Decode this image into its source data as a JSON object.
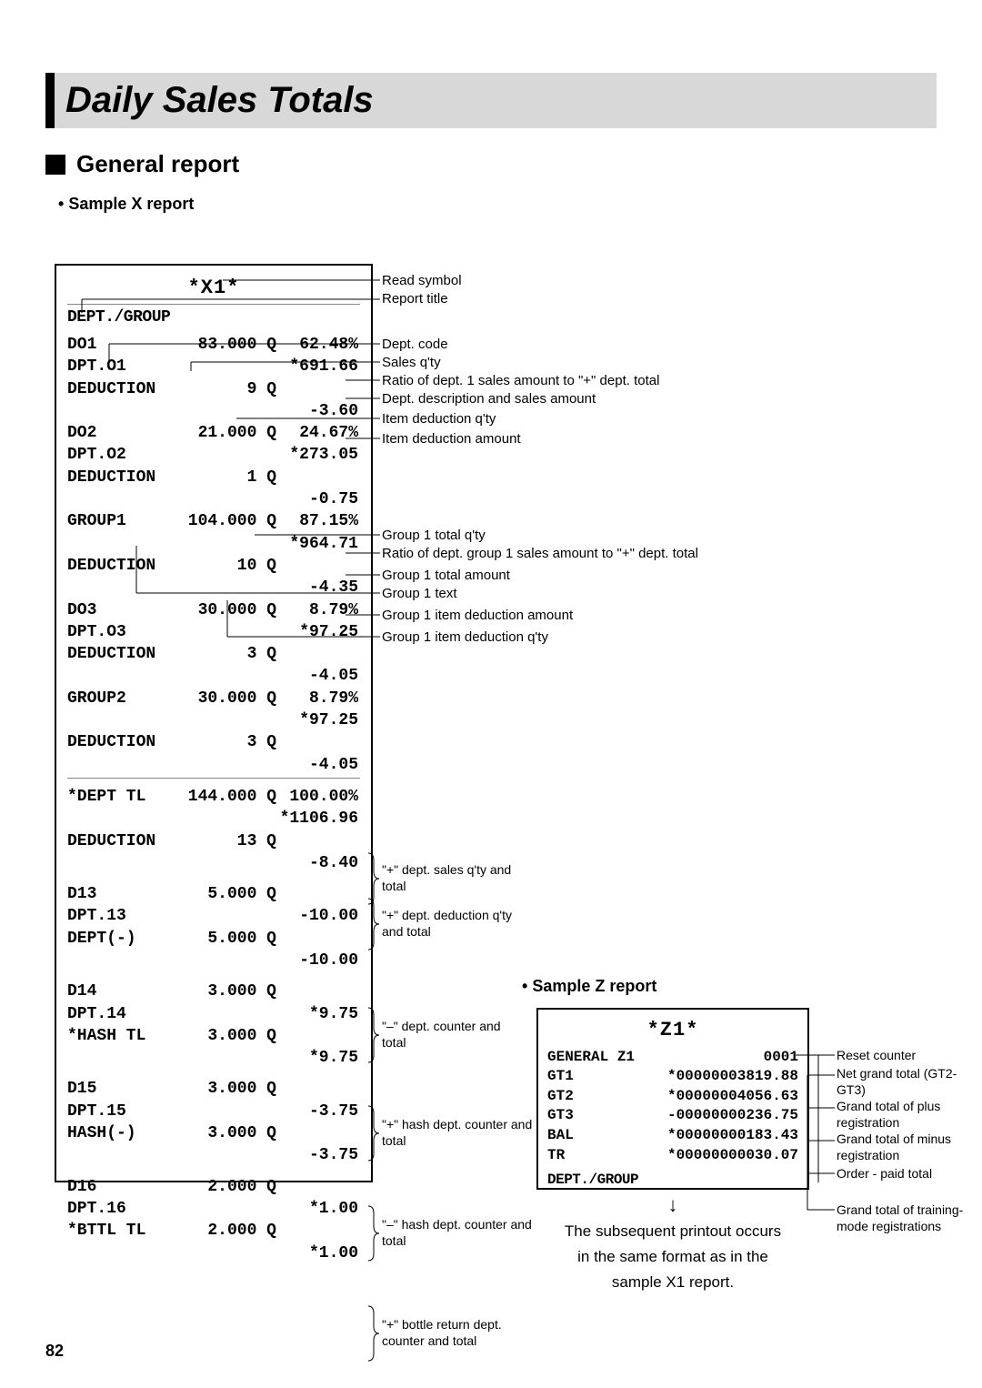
{
  "page": {
    "title": "Daily Sales Totals",
    "section": "General report",
    "sampleX": "Sample X report",
    "sampleZ": "Sample Z report",
    "pageNumber": "82"
  },
  "receiptX": {
    "header": "*X1*",
    "reportTitle": "DEPT./GROUP",
    "rows": [
      {
        "c1": "DO1",
        "c2": "83.000 Q",
        "c3": "62.48%"
      },
      {
        "c1": "DPT.O1",
        "c2": "",
        "c3": "*691.66"
      },
      {
        "c1": "DEDUCTION",
        "c2": "9 Q",
        "c3": ""
      },
      {
        "c1": "",
        "c2": "",
        "c3": "-3.60"
      },
      {
        "c1": "DO2",
        "c2": "21.000 Q",
        "c3": "24.67%"
      },
      {
        "c1": "DPT.O2",
        "c2": "",
        "c3": "*273.05"
      },
      {
        "c1": "DEDUCTION",
        "c2": "1 Q",
        "c3": ""
      },
      {
        "c1": "",
        "c2": "",
        "c3": "-0.75"
      },
      {
        "c1": "GROUP1",
        "c2": "104.000 Q",
        "c3": "87.15%"
      },
      {
        "c1": "",
        "c2": "",
        "c3": "*964.71"
      },
      {
        "c1": "DEDUCTION",
        "c2": "10 Q",
        "c3": ""
      },
      {
        "c1": "",
        "c2": "",
        "c3": "-4.35"
      },
      {
        "c1": "DO3",
        "c2": "30.000 Q",
        "c3": "8.79%"
      },
      {
        "c1": "DPT.O3",
        "c2": "",
        "c3": "*97.25"
      },
      {
        "c1": "DEDUCTION",
        "c2": "3 Q",
        "c3": ""
      },
      {
        "c1": "",
        "c2": "",
        "c3": "-4.05"
      },
      {
        "c1": "GROUP2",
        "c2": "30.000 Q",
        "c3": "8.79%"
      },
      {
        "c1": "",
        "c2": "",
        "c3": "*97.25"
      },
      {
        "c1": "DEDUCTION",
        "c2": "3 Q",
        "c3": ""
      },
      {
        "c1": "",
        "c2": "",
        "c3": "-4.05"
      },
      {
        "c1": "*DEPT TL",
        "c2": "144.000 Q",
        "c3": "100.00%"
      },
      {
        "c1": "",
        "c2": "",
        "c3": "*1106.96"
      },
      {
        "c1": "DEDUCTION",
        "c2": "13 Q",
        "c3": ""
      },
      {
        "c1": "",
        "c2": "",
        "c3": "-8.40"
      },
      {
        "c1": "D13",
        "c2": "5.000 Q",
        "c3": ""
      },
      {
        "c1": "DPT.13",
        "c2": "",
        "c3": "-10.00"
      },
      {
        "c1": "DEPT(-)",
        "c2": "5.000 Q",
        "c3": ""
      },
      {
        "c1": "",
        "c2": "",
        "c3": "-10.00"
      },
      {
        "c1": "D14",
        "c2": "3.000 Q",
        "c3": ""
      },
      {
        "c1": "DPT.14",
        "c2": "",
        "c3": "*9.75"
      },
      {
        "c1": "*HASH TL",
        "c2": "3.000 Q",
        "c3": ""
      },
      {
        "c1": "",
        "c2": "",
        "c3": "*9.75"
      },
      {
        "c1": "D15",
        "c2": "3.000 Q",
        "c3": ""
      },
      {
        "c1": "DPT.15",
        "c2": "",
        "c3": "-3.75"
      },
      {
        "c1": "HASH(-)",
        "c2": "3.000 Q",
        "c3": ""
      },
      {
        "c1": "",
        "c2": "",
        "c3": "-3.75"
      },
      {
        "c1": "D16",
        "c2": "2.000 Q",
        "c3": ""
      },
      {
        "c1": "DPT.16",
        "c2": "",
        "c3": "*1.00"
      },
      {
        "c1": "*BTTL TL",
        "c2": "2.000 Q",
        "c3": ""
      },
      {
        "c1": "",
        "c2": "",
        "c3": "*1.00"
      }
    ]
  },
  "receiptZ": {
    "header": "*Z1*",
    "rows": [
      {
        "c1": "GENERAL Z1",
        "c2": "0001"
      },
      {
        "c1": "GT1",
        "c2": "*00000003819.88"
      },
      {
        "c1": "GT2",
        "c2": "*00000004056.63"
      },
      {
        "c1": "GT3",
        "c2": "-00000000236.75"
      },
      {
        "c1": "BAL",
        "c2": "*00000000183.43"
      },
      {
        "c1": "TR",
        "c2": "*00000000030.07"
      }
    ],
    "footer": "DEPT./GROUP",
    "note1": "The subsequent printout occurs",
    "note2": "in the same format as in the",
    "note3": "sample X1 report."
  },
  "anno": {
    "readSymbol": "Read symbol",
    "reportTitle": "Report title",
    "deptCode": "Dept. code",
    "salesQty": "Sales q'ty",
    "ratio1": "Ratio of dept. 1 sales amount to \"+\" dept. total",
    "deptDesc": "Dept. description and sales amount",
    "itemDedQty": "Item deduction q'ty",
    "itemDedAmt": "Item deduction amount",
    "g1totQty": "Group 1 total q'ty",
    "g1ratio": "Ratio of dept. group 1 sales amount to \"+\" dept. total",
    "g1totAmt": "Group 1 total amount",
    "g1text": "Group 1 text",
    "g1dedAmt": "Group 1 item deduction amount",
    "g1dedQty": "Group 1 item deduction q'ty",
    "plusSales": "\"+\" dept. sales q'ty and total",
    "plusDed": "\"+\" dept. deduction q'ty and total",
    "minusDept": "\"–\" dept. counter and total",
    "plusHash": "\"+\" hash dept. counter and total",
    "minusHash": "\"–\" hash dept. counter and total",
    "plusBottle": "\"+\" bottle return dept. counter and total",
    "resetCounter": "Reset counter",
    "netGrand": "Net grand total (GT2-GT3)",
    "grandPlus": "Grand total of plus registration",
    "grandMinus": "Grand total of minus registration",
    "orderPaid": "Order - paid total",
    "grandTraining": "Grand total of training-mode registrations"
  }
}
